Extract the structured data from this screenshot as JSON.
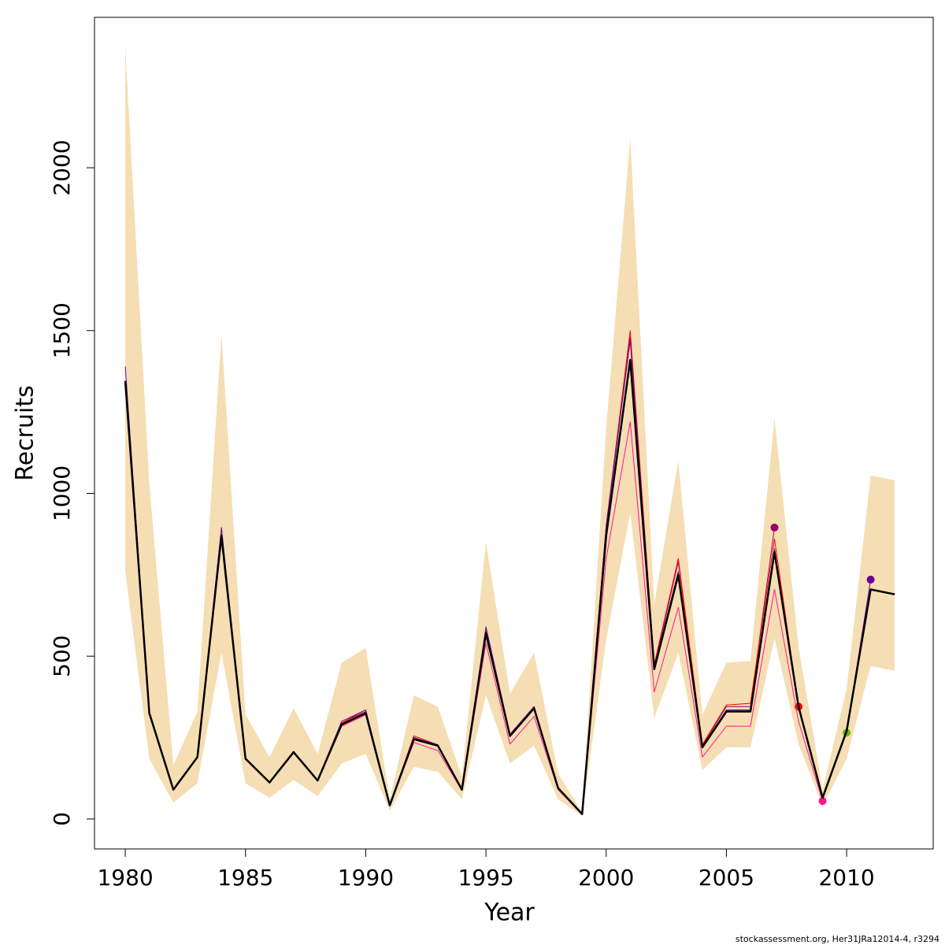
{
  "chart_data": {
    "type": "line",
    "xlabel": "Year",
    "ylabel": "Recruits",
    "footer": "stockassessment.org, Her31JRa12014-4, r3294",
    "x": [
      1980,
      1981,
      1982,
      1983,
      1984,
      1985,
      1986,
      1987,
      1988,
      1989,
      1990,
      1991,
      1992,
      1993,
      1994,
      1995,
      1996,
      1997,
      1998,
      1999,
      2000,
      2001,
      2002,
      2003,
      2004,
      2005,
      2006,
      2007,
      2008,
      2009,
      2010,
      2011,
      2012
    ],
    "band": {
      "color": "#f5deb3",
      "upper": [
        2370,
        1030,
        165,
        330,
        1490,
        320,
        190,
        340,
        200,
        480,
        525,
        60,
        380,
        345,
        130,
        850,
        385,
        510,
        140,
        20,
        1200,
        2090,
        660,
        1100,
        320,
        480,
        485,
        1230,
        530,
        90,
        400,
        1055,
        1040
      ],
      "lower": [
        760,
        185,
        50,
        110,
        510,
        110,
        65,
        120,
        70,
        170,
        200,
        25,
        160,
        145,
        60,
        380,
        170,
        225,
        60,
        10,
        550,
        940,
        310,
        510,
        150,
        220,
        220,
        555,
        230,
        40,
        185,
        470,
        455
      ]
    },
    "series": [
      {
        "color": "#990066",
        "width": 1,
        "points": true,
        "values": [
          1345,
          325,
          90,
          190,
          870,
          185,
          112,
          205,
          118,
          295,
          330,
          42,
          250,
          225,
          90,
          575,
          255,
          340,
          95,
          15,
          890,
          1480,
          470,
          790,
          225,
          345,
          345,
          895,
          null,
          null,
          null,
          null,
          null
        ]
      },
      {
        "color": "#ff0000",
        "width": 1,
        "points": true,
        "values": [
          1345,
          325,
          90,
          190,
          875,
          185,
          112,
          205,
          118,
          295,
          335,
          42,
          255,
          228,
          90,
          580,
          260,
          345,
          95,
          15,
          900,
          1500,
          475,
          800,
          228,
          350,
          355,
          860,
          345,
          null,
          null,
          null,
          null
        ]
      },
      {
        "color": "#ff1493",
        "width": 1,
        "points": true,
        "values": [
          1345,
          325,
          90,
          190,
          870,
          185,
          112,
          205,
          118,
          285,
          320,
          42,
          235,
          210,
          88,
          540,
          230,
          315,
          90,
          14,
          800,
          1220,
          390,
          650,
          190,
          285,
          285,
          705,
          300,
          55,
          null,
          null,
          null
        ]
      },
      {
        "color": "#66bb00",
        "width": 1,
        "points": true,
        "values": [
          1345,
          325,
          90,
          190,
          870,
          185,
          112,
          205,
          118,
          290,
          325,
          42,
          245,
          225,
          90,
          570,
          255,
          340,
          95,
          15,
          870,
          1410,
          460,
          750,
          220,
          330,
          330,
          820,
          345,
          65,
          265,
          null,
          null
        ]
      },
      {
        "color": "#660099",
        "width": 1,
        "points": true,
        "values": [
          1390,
          330,
          92,
          192,
          895,
          188,
          114,
          208,
          120,
          300,
          335,
          43,
          250,
          228,
          91,
          590,
          260,
          345,
          96,
          15,
          900,
          1470,
          470,
          760,
          222,
          335,
          335,
          830,
          350,
          66,
          270,
          735,
          null
        ]
      },
      {
        "color": "#000000",
        "width": 2.5,
        "points": false,
        "values": [
          1345,
          325,
          90,
          190,
          870,
          185,
          112,
          205,
          118,
          290,
          325,
          42,
          245,
          225,
          90,
          570,
          255,
          340,
          95,
          15,
          870,
          1410,
          460,
          750,
          220,
          330,
          330,
          820,
          345,
          65,
          270,
          705,
          690
        ]
      }
    ],
    "xlim": [
      1978.72,
      2013.6
    ],
    "ylim": [
      -92,
      2462
    ],
    "xticks": [
      1980,
      1985,
      1990,
      1995,
      2000,
      2005,
      2010
    ],
    "yticks": [
      0,
      500,
      1000,
      1500,
      2000
    ]
  }
}
